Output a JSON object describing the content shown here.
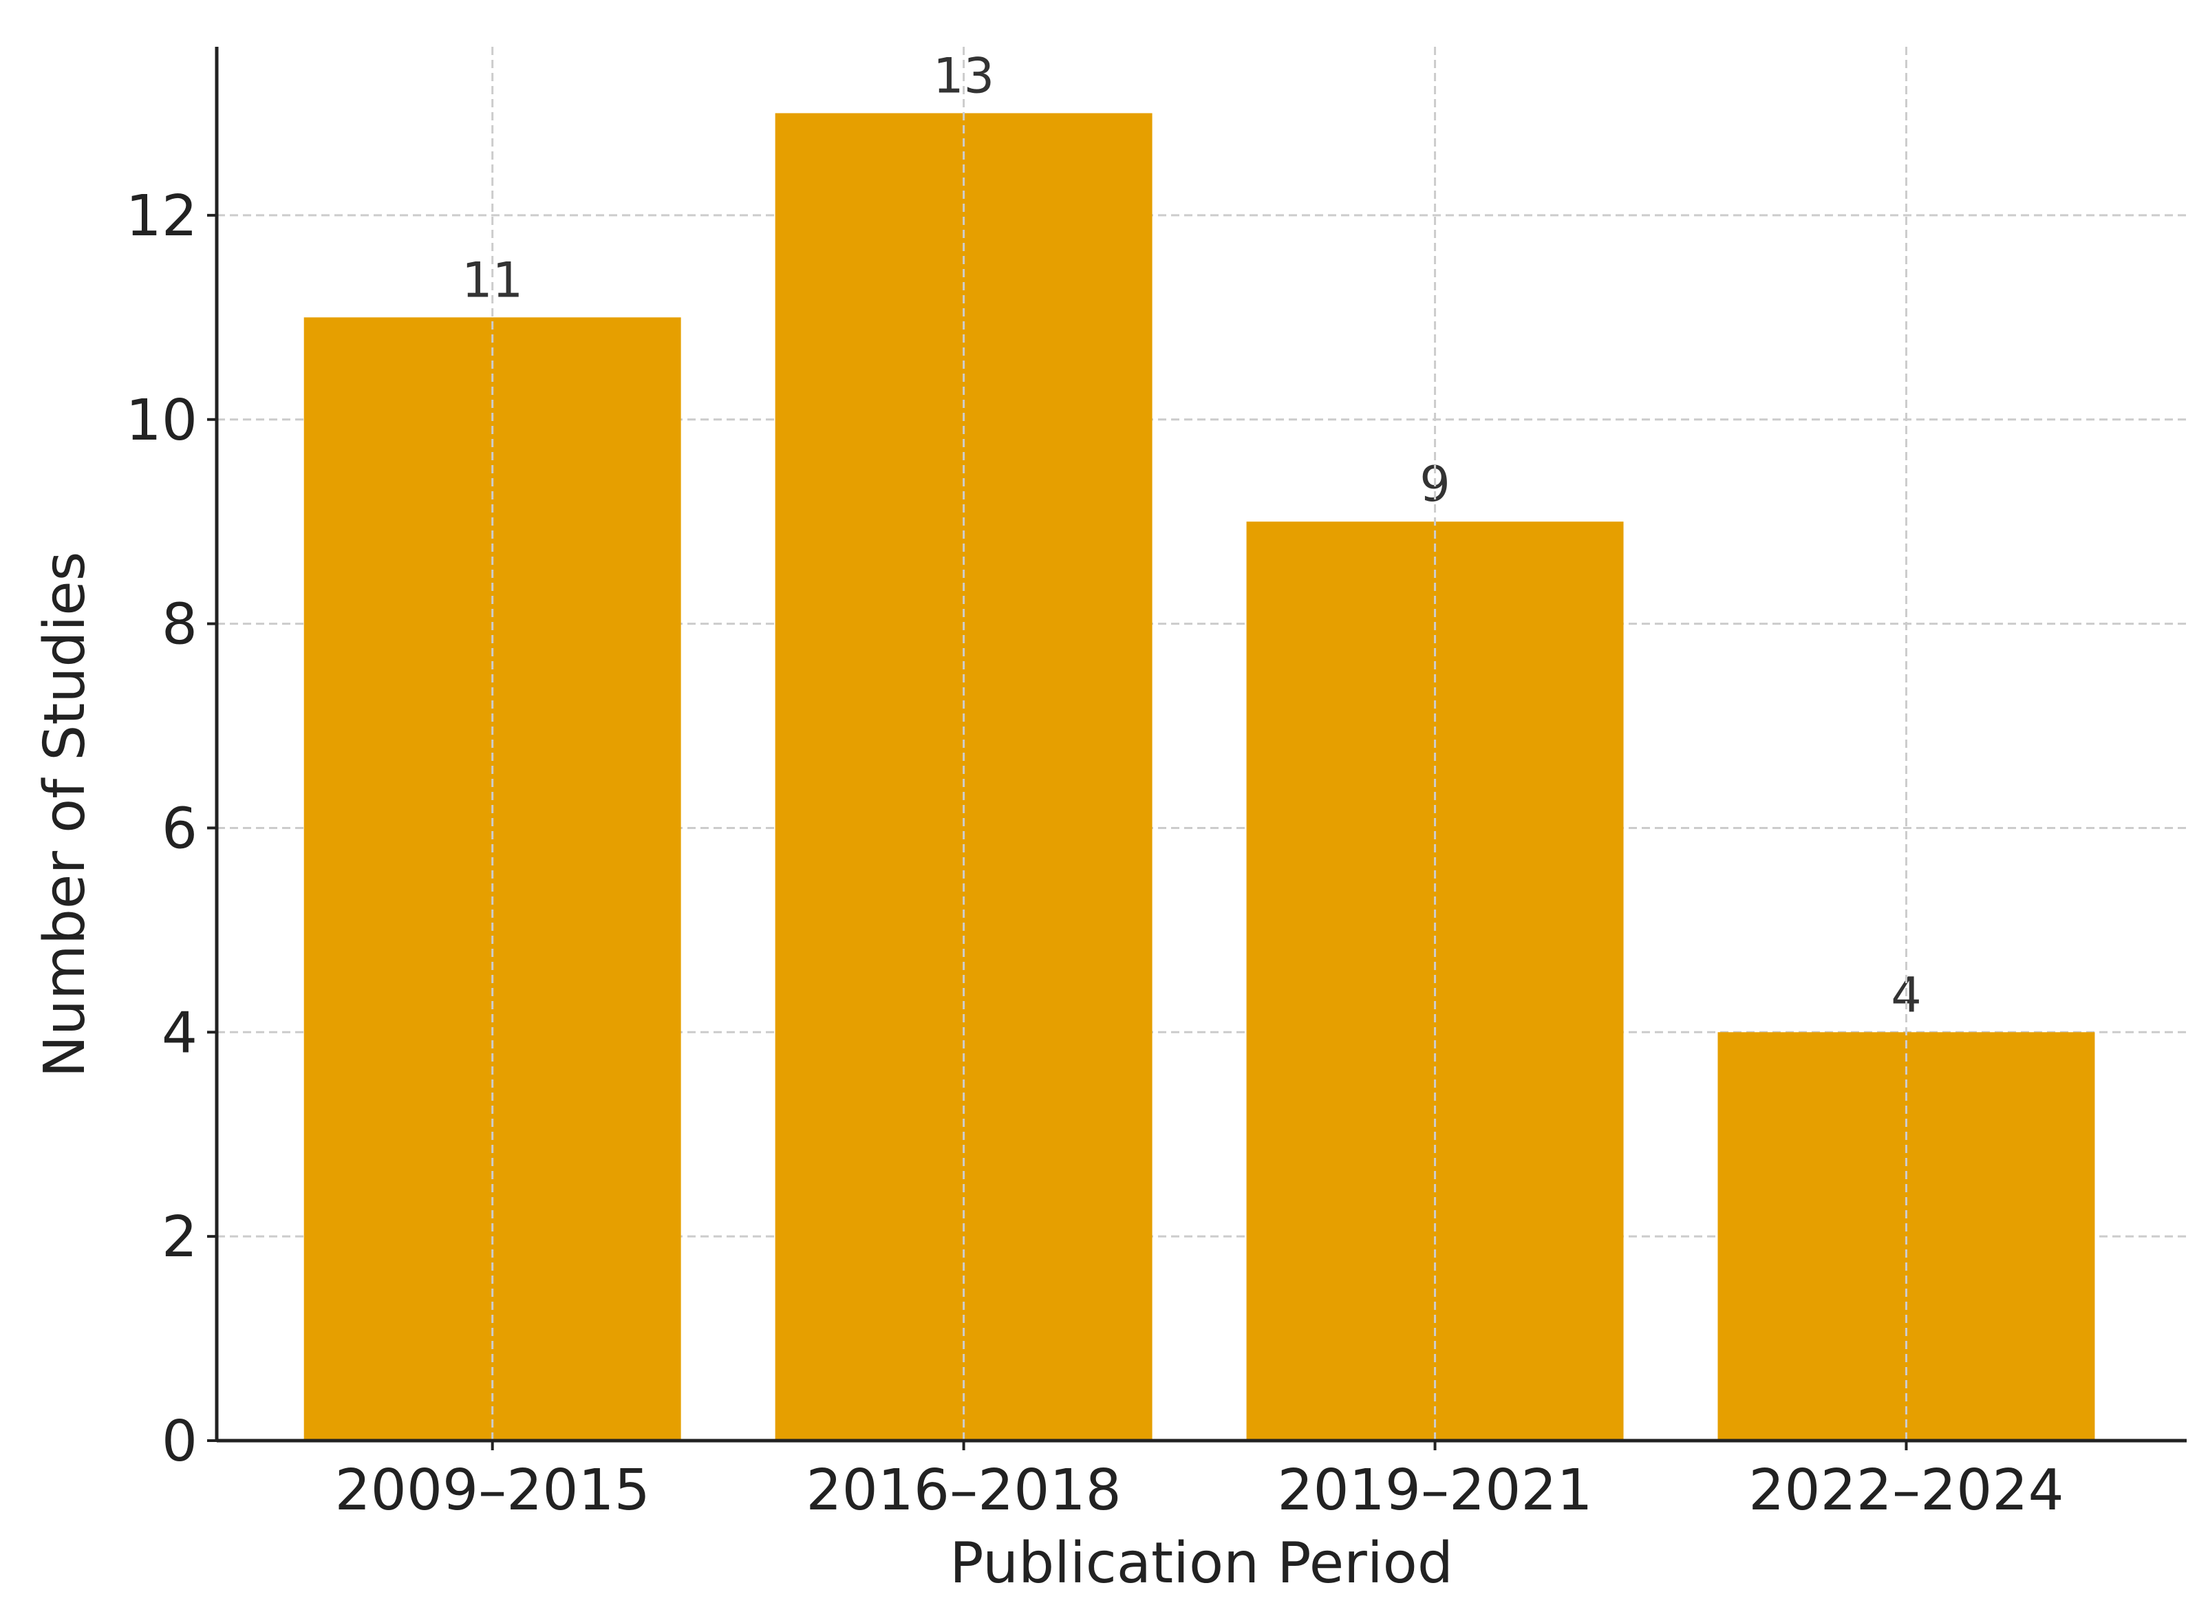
{
  "chart_data": {
    "type": "bar",
    "x_label": "Publication Period",
    "y_label": "Number of Studies",
    "categories": [
      "2009–2015",
      "2016–2018",
      "2019–2021",
      "2022–2024"
    ],
    "values": [
      11,
      13,
      9,
      4
    ],
    "color": "#e69f00",
    "ylim": [
      0,
      13.65
    ],
    "yticks": [
      0,
      2,
      4,
      6,
      8,
      10,
      12
    ],
    "grid": true
  }
}
